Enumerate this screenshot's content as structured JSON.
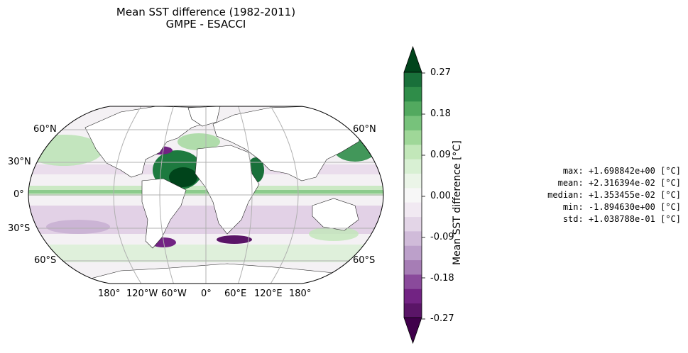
{
  "title": {
    "line1": "Mean SST difference (1982-2011)",
    "line2": "GMPE - ESACCI"
  },
  "map": {
    "projection": "Robinson",
    "lat_labels_left": [
      "60°N",
      "30°N",
      "0°",
      "30°S",
      "60°S"
    ],
    "lat_labels_right": [
      "60°N",
      "60°S"
    ],
    "lon_labels": [
      "180°",
      "120°W",
      "60°W",
      "0°",
      "60°E",
      "120°E",
      "180°"
    ],
    "gridlines": true
  },
  "colorbar": {
    "label": "Mean SST difference [°C]",
    "ticks": [
      "0.27",
      "0.18",
      "0.09",
      "0.00",
      "-0.09",
      "-0.18",
      "-0.27"
    ],
    "range": [
      -0.3,
      0.3
    ],
    "extend": "both",
    "colors": [
      "#40004b",
      "#5a1567",
      "#722383",
      "#8a4a9b",
      "#a67db5",
      "#bca0ca",
      "#d0bbd9",
      "#e3d5e7",
      "#f1e9f2",
      "#f7f7f7",
      "#ebf5e8",
      "#d8f0d3",
      "#c2e7b9",
      "#9fd798",
      "#77c27b",
      "#52a95f",
      "#2f8d49",
      "#19703a",
      "#00441b"
    ]
  },
  "stats": {
    "max": "max: +1.698842e+00 [°C]",
    "mean": "mean: +2.316394e-02 [°C]",
    "median": "median: +1.353455e-02 [°C]",
    "min": "min: -1.894630e+00 [°C]",
    "std": "std: +1.038788e-01 [°C]"
  }
}
